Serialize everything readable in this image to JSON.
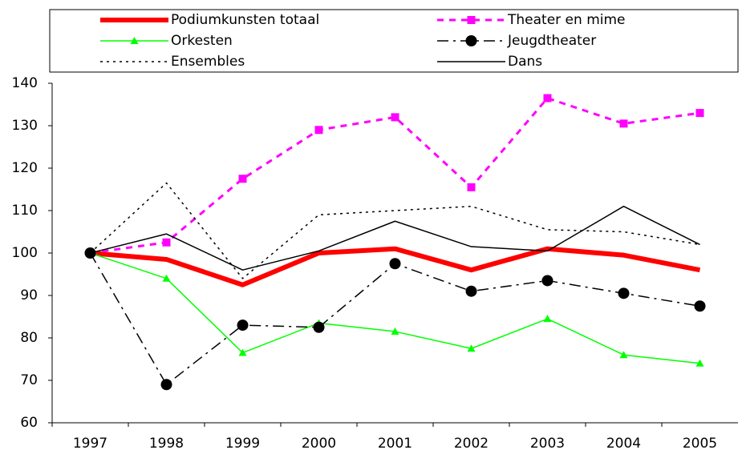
{
  "chart_data": {
    "type": "line",
    "categories": [
      "1997",
      "1998",
      "1999",
      "2000",
      "2001",
      "2002",
      "2003",
      "2004",
      "2005"
    ],
    "series": [
      {
        "name": "Podiumkunsten totaal",
        "color": "#ff0000",
        "line_width": 6,
        "dash": "none",
        "marker": "none",
        "values": [
          100,
          98.5,
          92.5,
          100,
          101,
          96,
          101,
          99.5,
          96
        ]
      },
      {
        "name": "Theater en mime",
        "color": "#ff00ff",
        "line_width": 3,
        "dash": "8 7",
        "marker": "square",
        "values": [
          100,
          102.5,
          117.5,
          129,
          132,
          115.5,
          136.5,
          130.5,
          133
        ]
      },
      {
        "name": "Orkesten",
        "color": "#00ff00",
        "line_width": 1.5,
        "dash": "none",
        "marker": "triangle",
        "values": [
          100,
          94,
          76.5,
          83.5,
          81.5,
          77.5,
          84.5,
          76,
          74
        ]
      },
      {
        "name": "Jeugdtheater",
        "color": "#000000",
        "line_width": 1.5,
        "dash": "14 6 3 6",
        "marker": "circle",
        "values": [
          100,
          69,
          83,
          82.5,
          97.5,
          91,
          93.5,
          90.5,
          87.5
        ]
      },
      {
        "name": "Ensembles",
        "color": "#000000",
        "line_width": 1.5,
        "dash": "3 5",
        "marker": "none",
        "values": [
          100,
          116.5,
          94,
          109,
          110,
          111,
          105.5,
          105,
          102
        ]
      },
      {
        "name": "Dans",
        "color": "#000000",
        "line_width": 1.5,
        "dash": "none",
        "marker": "none",
        "values": [
          100,
          104.5,
          96,
          100.5,
          107.5,
          101.5,
          100.5,
          111,
          102
        ]
      }
    ],
    "ylim": [
      60,
      140
    ],
    "yticks": [
      60,
      70,
      80,
      90,
      100,
      110,
      120,
      130,
      140
    ],
    "grid": false
  }
}
